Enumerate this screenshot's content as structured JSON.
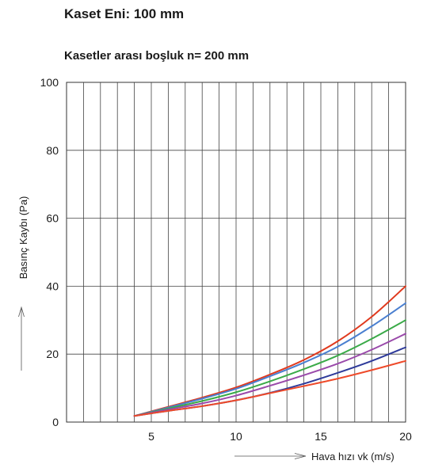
{
  "header": {
    "title": "Kaset Eni: 100 mm",
    "subtitle": "Kasetler arası boşluk  n= 200 mm"
  },
  "chart_data": {
    "type": "line",
    "title": "Kaset Eni: 100 mm",
    "subtitle": "Kasetler arası boşluk  n= 200 mm",
    "xlabel": "Hava hızı  vk (m/s)",
    "ylabel": "Basınç Kaybı (Pa)",
    "xlim": [
      0,
      20
    ],
    "ylim": [
      0,
      100
    ],
    "xticks": [
      5,
      10,
      15,
      20
    ],
    "yticks": [
      0,
      20,
      40,
      60,
      80,
      100
    ],
    "grid": {
      "vertical_every": 1,
      "horizontal_every": 20
    },
    "legend": "none",
    "x": [
      4,
      6,
      8,
      10,
      12,
      14,
      16,
      18,
      20
    ],
    "series": [
      {
        "color": "#e03a1e",
        "values": [
          1.8,
          4.5,
          7.2,
          10.2,
          14.0,
          18.3,
          23.8,
          31.0,
          40.0
        ]
      },
      {
        "color": "#4a7fd0",
        "values": [
          1.8,
          4.3,
          6.9,
          9.8,
          13.5,
          17.5,
          22.2,
          28.2,
          35.0
        ]
      },
      {
        "color": "#3aaa48",
        "values": [
          1.8,
          4.0,
          6.2,
          8.8,
          12.0,
          15.6,
          19.6,
          24.5,
          30.0
        ]
      },
      {
        "color": "#9a4aaa",
        "values": [
          1.8,
          3.7,
          5.5,
          7.8,
          10.7,
          13.8,
          17.2,
          21.3,
          26.0
        ]
      },
      {
        "color": "#2e3a9a",
        "values": [
          1.8,
          3.3,
          4.7,
          6.4,
          8.6,
          11.3,
          14.5,
          18.0,
          22.0
        ]
      },
      {
        "color": "#ee4a2a",
        "values": [
          1.8,
          3.3,
          4.7,
          6.4,
          8.5,
          10.6,
          12.8,
          15.3,
          18.0
        ]
      }
    ]
  }
}
